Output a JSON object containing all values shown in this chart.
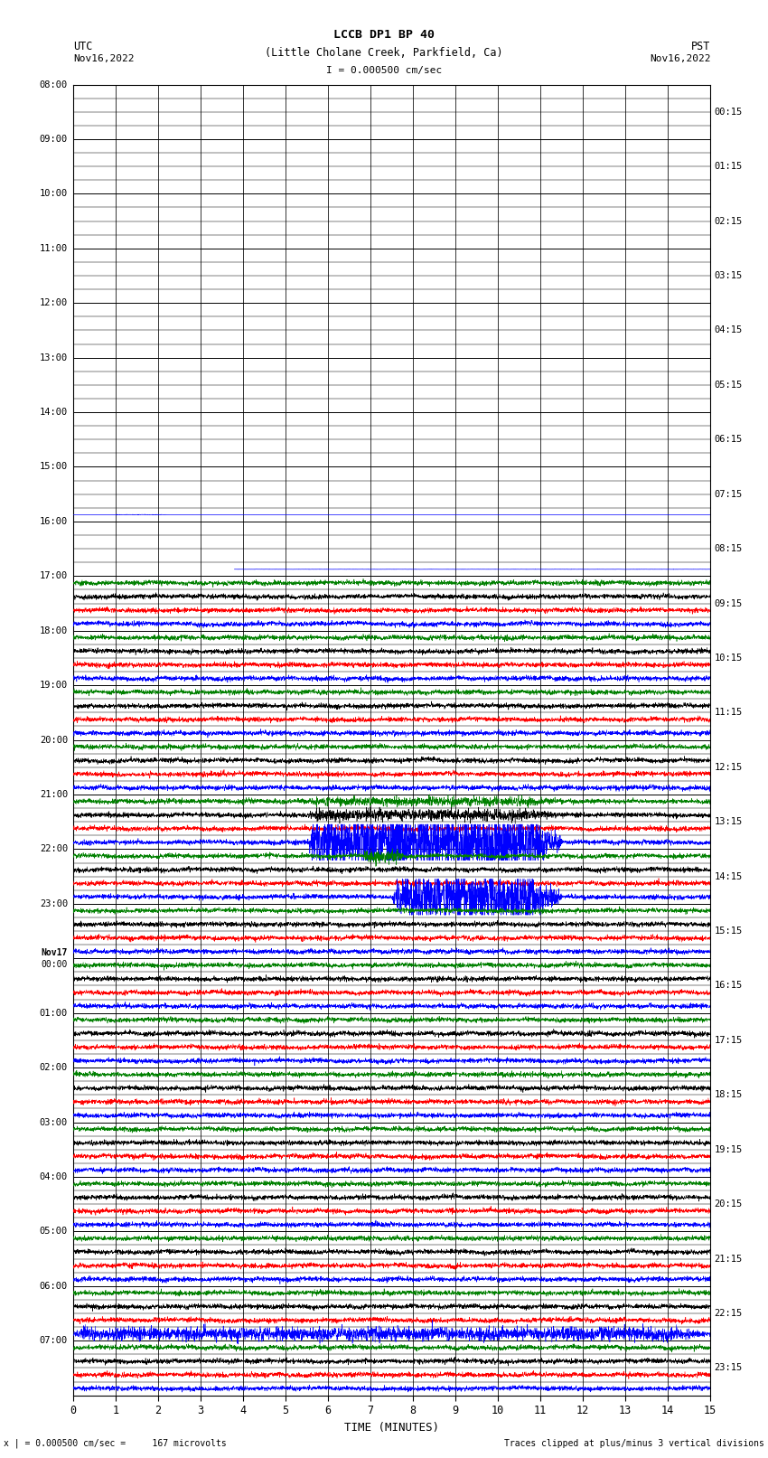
{
  "title_line1": "LCCB DP1 BP 40",
  "title_line2": "(Little Cholane Creek, Parkfield, Ca)",
  "scale_text": "I = 0.000500 cm/sec",
  "left_header1": "UTC",
  "left_header2": "Nov16,2022",
  "right_header1": "PST",
  "right_header2": "Nov16,2022",
  "bottom_label": "TIME (MINUTES)",
  "bottom_note_left": "x | = 0.000500 cm/sec =     167 microvolts",
  "bottom_note_right": "Traces clipped at plus/minus 3 vertical divisions",
  "utc_times": [
    "08:00",
    "09:00",
    "10:00",
    "11:00",
    "12:00",
    "13:00",
    "14:00",
    "15:00",
    "16:00",
    "17:00",
    "18:00",
    "19:00",
    "20:00",
    "21:00",
    "22:00",
    "23:00",
    "Nov17\n00:00",
    "01:00",
    "02:00",
    "03:00",
    "04:00",
    "05:00",
    "06:00",
    "07:00"
  ],
  "pst_times": [
    "00:15",
    "01:15",
    "02:15",
    "03:15",
    "04:15",
    "05:15",
    "06:15",
    "07:15",
    "08:15",
    "09:15",
    "10:15",
    "11:15",
    "12:15",
    "13:15",
    "14:15",
    "15:15",
    "16:15",
    "17:15",
    "18:15",
    "19:15",
    "20:15",
    "21:15",
    "22:15",
    "23:15"
  ],
  "num_rows": 24,
  "sub_rows": 4,
  "trace_colors": [
    "#008000",
    "#000000",
    "#ff0000",
    "#0000ff"
  ],
  "bg_color": "#ffffff",
  "grid_major_color": "#000000",
  "grid_minor_color": "#888888",
  "minutes_per_row": 15,
  "fig_width": 8.5,
  "fig_height": 16.13,
  "dpi": 100,
  "lm": 0.095,
  "rm": 0.075,
  "tm": 0.058,
  "bm": 0.043
}
